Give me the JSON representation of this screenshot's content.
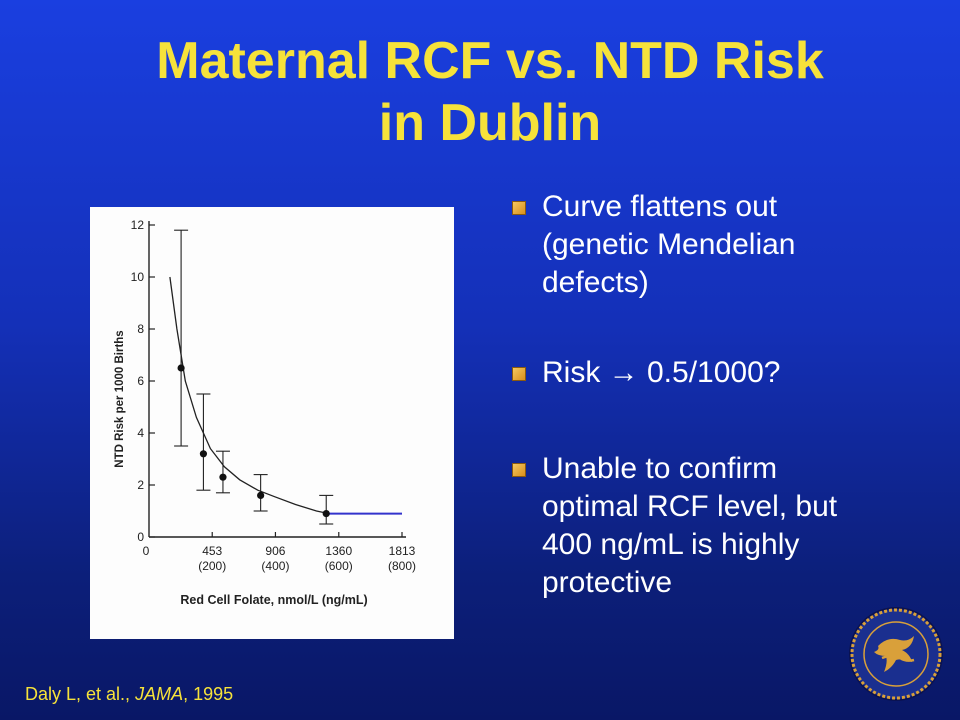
{
  "slide": {
    "title_line1": "Maternal RCF vs. NTD Risk",
    "title_line2": "in Dublin",
    "bullets": [
      "Curve flattens out (genetic Mendelian defects)",
      "Risk  → 0.5/1000?",
      "Unable to confirm optimal RCF level, but 400 ng/mL is highly protective"
    ],
    "citation_authors": "Daly L, et al., ",
    "citation_journal": "JAMA",
    "citation_year": ", 1995",
    "seal_icon": "hhs-seal-icon"
  },
  "colors": {
    "title": "#f6e23a",
    "background": "#1430b8",
    "bullet_text": "#ffffff",
    "extrapolation_line": "#3333cc"
  },
  "chart_data": {
    "type": "line",
    "title": "",
    "xlabel": "Red Cell Folate, nmol/L (ng/mL)",
    "ylabel": "NTD Risk per 1000 Births",
    "xlim": [
      0,
      1813
    ],
    "ylim": [
      0,
      12
    ],
    "x_ticks": [
      {
        "value": 0,
        "label": "0",
        "sublabel": ""
      },
      {
        "value": 453,
        "label": "453",
        "sublabel": "(200)"
      },
      {
        "value": 906,
        "label": "906",
        "sublabel": "(400)"
      },
      {
        "value": 1360,
        "label": "1360",
        "sublabel": "(600)"
      },
      {
        "value": 1813,
        "label": "1813",
        "sublabel": "(800)"
      }
    ],
    "y_ticks": [
      "0",
      "2",
      "4",
      "6",
      "8",
      "10",
      "12"
    ],
    "fitted_curve": {
      "x": [
        150,
        200,
        260,
        340,
        440,
        540,
        650,
        780,
        900,
        1050,
        1200,
        1290
      ],
      "y": [
        10.0,
        8.0,
        6.0,
        4.6,
        3.4,
        2.7,
        2.2,
        1.8,
        1.55,
        1.25,
        1.0,
        0.9
      ]
    },
    "series": [
      {
        "x": [
          230,
          390,
          530,
          800,
          1270
        ],
        "y": [
          6.5,
          3.2,
          2.3,
          1.6,
          0.9
        ],
        "err_low": [
          3.5,
          1.8,
          1.7,
          1.0,
          0.5
        ],
        "err_high": [
          11.8,
          5.5,
          3.3,
          2.4,
          1.6
        ]
      }
    ],
    "extrapolation": {
      "x": [
        1270,
        1813
      ],
      "y": [
        0.9,
        0.9
      ]
    },
    "grid": false
  }
}
